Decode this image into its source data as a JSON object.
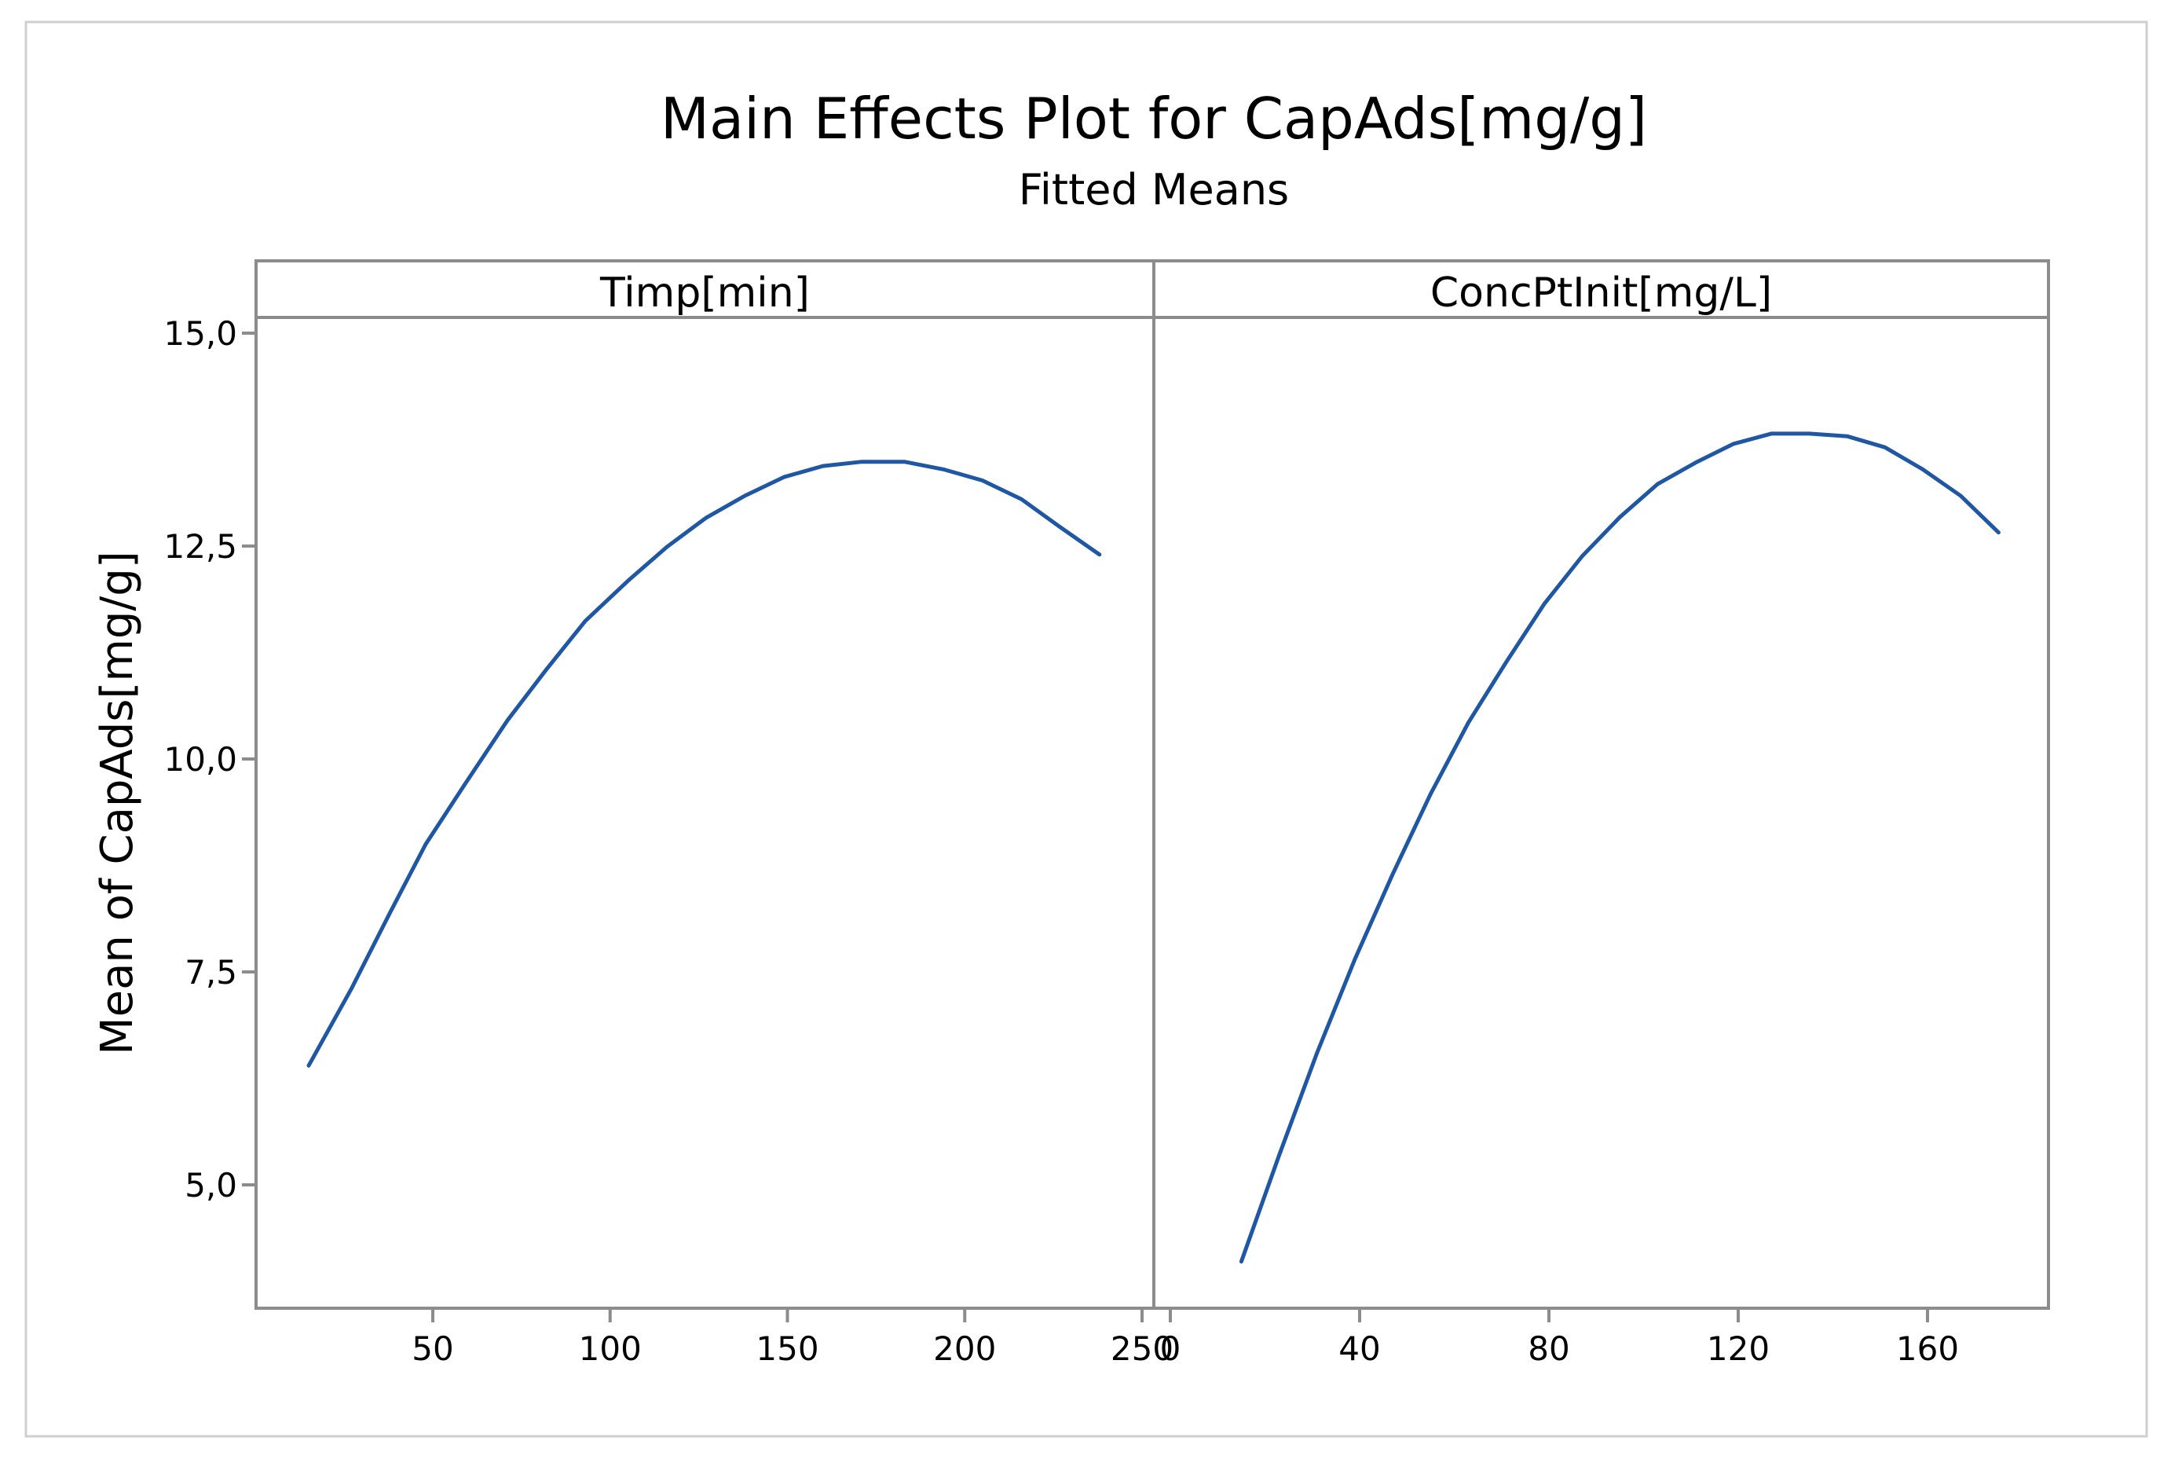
{
  "chart_data": {
    "type": "line",
    "title": "Main Effects Plot for CapAds[mg/g]",
    "subtitle": "Fitted Means",
    "ylabel": "Mean of CapAds[mg/g]",
    "ylim": [
      3.6,
      15.8
    ],
    "yticks": [
      5.0,
      7.5,
      10.0,
      12.5,
      15.0
    ],
    "ytick_labels": [
      "5,0",
      "7,5",
      "10,0",
      "12,5",
      "15,0"
    ],
    "line_color": "#1f57a4",
    "frame_color": "#8c8c8c",
    "panels": [
      {
        "label": "Timp[min]",
        "xlim": [
          0,
          255
        ],
        "xticks": [
          50,
          100,
          150,
          200,
          250
        ],
        "xtick_labels": [
          "50",
          "100",
          "150",
          "200",
          "250"
        ],
        "series": [
          {
            "x": [
              15,
              27,
              38,
              48,
              59,
              71,
              82,
              93,
              105,
              116,
              127,
              138,
              149,
              160,
              171,
              183,
              194,
              205,
              216,
              227,
              238
            ],
            "y": [
              6.4,
              7.3,
              8.2,
              9.0,
              9.7,
              10.45,
              11.05,
              11.62,
              12.09,
              12.49,
              12.83,
              13.09,
              13.31,
              13.44,
              13.49,
              13.49,
              13.4,
              13.27,
              13.05,
              12.72,
              12.4
            ]
          }
        ]
      },
      {
        "label": "ConcPtInit[mg/L]",
        "xlim": [
          0,
          188
        ],
        "xticks": [
          0,
          40,
          80,
          120,
          160
        ],
        "xtick_labels": [
          "0",
          "40",
          "80",
          "120",
          "160"
        ],
        "series": [
          {
            "x": [
              15,
              23,
              31,
              39,
              47,
              55,
              63,
              71,
              79,
              87,
              95,
              103,
              111,
              119,
              127,
              135,
              143,
              151,
              159,
              167,
              175
            ],
            "y": [
              4.1,
              5.35,
              6.55,
              7.65,
              8.65,
              9.59,
              10.43,
              11.14,
              11.82,
              12.38,
              12.84,
              13.23,
              13.48,
              13.7,
              13.82,
              13.82,
              13.79,
              13.66,
              13.4,
              13.09,
              12.66
            ]
          }
        ]
      }
    ]
  }
}
